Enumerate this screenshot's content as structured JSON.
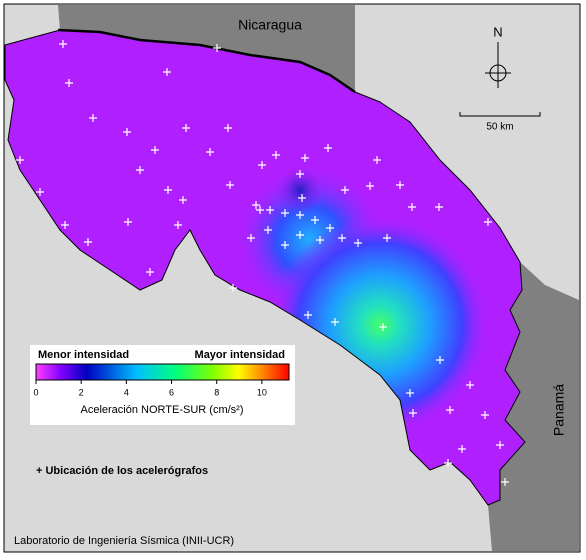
{
  "map": {
    "labels": {
      "north_country": "Nicaragua",
      "south_country": "Panamá",
      "north_arrow": "N",
      "scale": "50 km"
    },
    "colorbar": {
      "low_label": "Menor intensidad",
      "high_label": "Mayor intensidad",
      "title": "Aceleración NORTE-SUR (cm/s²)",
      "lim": [
        0,
        11.2
      ],
      "ticks": [
        0,
        2,
        4,
        6,
        8,
        10
      ]
    },
    "station_legend": "+ Ubicación de los acelerógrafos",
    "credit": "Laboratorio de Ingeniería Sísmica (INII-UCR)"
  }
}
